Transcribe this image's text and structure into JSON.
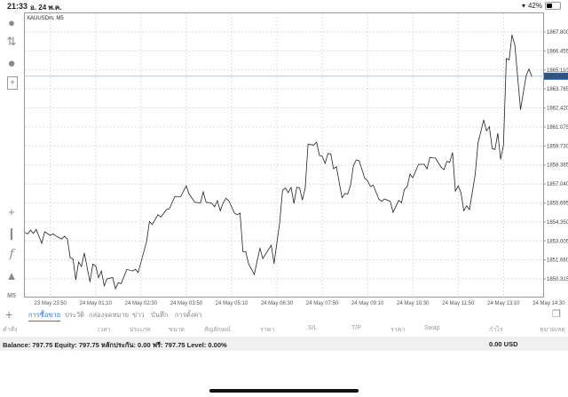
{
  "status_bar": {
    "time": "21:33",
    "date": "อ. 24 พ.ค.",
    "battery": "42%",
    "battery_level": 0.42,
    "wifi_icon": "wifi-icon"
  },
  "toolbar": {
    "icons": [
      "account-icon",
      "trade-arrows-icon",
      "chat-icon",
      "new-document-icon",
      "crosshair-icon",
      "candlestick-icon",
      "indicator-f-icon",
      "shapes-icon"
    ],
    "timeframe": "M5"
  },
  "chart": {
    "symbol_label": "XAUUSDm, M5",
    "current_price": "1864.668",
    "accent_color": "#2b5a94"
  },
  "chart_data": {
    "type": "line",
    "title": "XAUUSDm, M5",
    "xlim": [
      "23 May 23:05",
      "24 May 14:20"
    ],
    "ylim": [
      1849.06,
      1869.12
    ],
    "grid": true,
    "y_ticks": [
      "1867.800",
      "1866.455",
      "1865.110",
      "1863.765",
      "1862.420",
      "1861.075",
      "1859.730",
      "1858.385",
      "1857.040",
      "1855.695",
      "1854.350",
      "1853.005",
      "1851.660",
      "1850.315"
    ],
    "x_ticks": [
      "23 May 23:50",
      "24 May 01:10",
      "24 May 02:30",
      "24 May 03:50",
      "24 May 05:10",
      "24 May 06:30",
      "24 May 07:50",
      "24 May 09:10",
      "24 May 10:30",
      "24 May 11:50",
      "24 May 13:10",
      "24 May 14:30"
    ],
    "current_price": 1864.668,
    "points": [
      [
        "23 May 23:05",
        1853.6
      ],
      [
        "23 May 23:10",
        1853.5
      ],
      [
        "23 May 23:15",
        1853.77
      ],
      [
        "23 May 23:20",
        1853.54
      ],
      [
        "23 May 23:25",
        1853.82
      ],
      [
        "23 May 23:35",
        1852.83
      ],
      [
        "23 May 23:40",
        1853.65
      ],
      [
        "23 May 23:50",
        1853.4
      ],
      [
        "23 May 23:55",
        1853.5
      ],
      [
        "24 May 00:00",
        1853.35
      ],
      [
        "24 May 00:10",
        1853.14
      ],
      [
        "24 May 00:15",
        1853.33
      ],
      [
        "24 May 00:20",
        1853.14
      ],
      [
        "24 May 00:25",
        1851.82
      ],
      [
        "24 May 00:30",
        1851.72
      ],
      [
        "24 May 00:35",
        1850.25
      ],
      [
        "24 May 00:40",
        1851.51
      ],
      [
        "24 May 00:45",
        1851.19
      ],
      [
        "24 May 00:50",
        1852.14
      ],
      [
        "24 May 01:00",
        1850.11
      ],
      [
        "24 May 01:05",
        1851.36
      ],
      [
        "24 May 01:10",
        1851.24
      ],
      [
        "24 May 01:15",
        1850.4
      ],
      [
        "24 May 01:20",
        1850.88
      ],
      [
        "24 May 01:25",
        1849.83
      ],
      [
        "24 May 01:30",
        1850.31
      ],
      [
        "24 May 01:40",
        1850.42
      ],
      [
        "24 May 01:45",
        1849.62
      ],
      [
        "24 May 01:50",
        1850.04
      ],
      [
        "24 May 01:55",
        1849.98
      ],
      [
        "24 May 02:05",
        1850.99
      ],
      [
        "24 May 02:15",
        1850.88
      ],
      [
        "24 May 02:20",
        1850.99
      ],
      [
        "24 May 02:25",
        1850.77
      ],
      [
        "24 May 02:40",
        1852.97
      ],
      [
        "24 May 02:45",
        1854.38
      ],
      [
        "24 May 02:50",
        1854.17
      ],
      [
        "24 May 03:00",
        1854.86
      ],
      [
        "24 May 03:05",
        1854.7
      ],
      [
        "24 May 03:15",
        1855.22
      ],
      [
        "24 May 03:20",
        1855.28
      ],
      [
        "24 May 03:30",
        1856.16
      ],
      [
        "24 May 03:40",
        1856.14
      ],
      [
        "24 May 03:50",
        1856.9
      ],
      [
        "24 May 03:55",
        1856.33
      ],
      [
        "24 May 04:05",
        1855.74
      ],
      [
        "24 May 04:15",
        1855.7
      ],
      [
        "24 May 04:20",
        1856.48
      ],
      [
        "24 May 04:25",
        1855.74
      ],
      [
        "24 May 04:35",
        1855.68
      ],
      [
        "24 May 04:40",
        1855.43
      ],
      [
        "24 May 04:45",
        1855.85
      ],
      [
        "24 May 04:50",
        1855.14
      ],
      [
        "24 May 04:55",
        1855.7
      ],
      [
        "24 May 05:00",
        1856.02
      ],
      [
        "24 May 05:05",
        1855.85
      ],
      [
        "24 May 05:15",
        1854.97
      ],
      [
        "24 May 05:20",
        1854.86
      ],
      [
        "24 May 05:25",
        1854.97
      ],
      [
        "24 May 05:30",
        1852.24
      ],
      [
        "24 May 05:35",
        1852.24
      ],
      [
        "24 May 05:40",
        1851.4
      ],
      [
        "24 May 05:50",
        1850.63
      ],
      [
        "24 May 06:00",
        1852.5
      ],
      [
        "24 May 06:05",
        1851.76
      ],
      [
        "24 May 06:20",
        1852.7
      ],
      [
        "24 May 06:25",
        1851.4
      ],
      [
        "24 May 06:35",
        1854.34
      ],
      [
        "24 May 06:40",
        1856.6
      ],
      [
        "24 May 06:45",
        1856.75
      ],
      [
        "24 May 06:50",
        1856.43
      ],
      [
        "24 May 06:55",
        1856.79
      ],
      [
        "24 May 07:00",
        1855.66
      ],
      [
        "24 May 07:05",
        1856.81
      ],
      [
        "24 May 07:10",
        1856.75
      ],
      [
        "24 May 07:15",
        1855.91
      ],
      [
        "24 May 07:20",
        1856.75
      ],
      [
        "24 May 07:25",
        1859.86
      ],
      [
        "24 May 07:35",
        1859.79
      ],
      [
        "24 May 07:40",
        1860.0
      ],
      [
        "24 May 07:45",
        1859.06
      ],
      [
        "24 May 07:50",
        1858.99
      ],
      [
        "24 May 07:55",
        1858.49
      ],
      [
        "24 May 08:00",
        1859.2
      ],
      [
        "24 May 08:05",
        1859.16
      ],
      [
        "24 May 08:10",
        1858.11
      ],
      [
        "24 May 08:15",
        1858.26
      ],
      [
        "24 May 08:25",
        1856.06
      ],
      [
        "24 May 08:30",
        1856.37
      ],
      [
        "24 May 08:35",
        1856.33
      ],
      [
        "24 May 08:40",
        1856.96
      ],
      [
        "24 May 08:45",
        1858.32
      ],
      [
        "24 May 08:50",
        1858.74
      ],
      [
        "24 May 08:55",
        1858.68
      ],
      [
        "24 May 09:05",
        1857.44
      ],
      [
        "24 May 09:10",
        1857.28
      ],
      [
        "24 May 09:15",
        1856.86
      ],
      [
        "24 May 09:20",
        1856.96
      ],
      [
        "24 May 09:30",
        1855.96
      ],
      [
        "24 May 09:35",
        1855.81
      ],
      [
        "24 May 09:40",
        1855.98
      ],
      [
        "24 May 09:50",
        1855.81
      ],
      [
        "24 May 09:55",
        1855.03
      ],
      [
        "24 May 10:05",
        1855.87
      ],
      [
        "24 May 10:10",
        1855.7
      ],
      [
        "24 May 10:15",
        1856.65
      ],
      [
        "24 May 10:20",
        1856.86
      ],
      [
        "24 May 10:25",
        1857.74
      ],
      [
        "24 May 10:30",
        1857.48
      ],
      [
        "24 May 10:40",
        1858.43
      ],
      [
        "24 May 10:50",
        1858.43
      ],
      [
        "24 May 10:55",
        1858.11
      ],
      [
        "24 May 11:00",
        1858.91
      ],
      [
        "24 May 11:10",
        1858.87
      ],
      [
        "24 May 11:20",
        1858.22
      ],
      [
        "24 May 11:25",
        1858.05
      ],
      [
        "24 May 11:30",
        1858.64
      ],
      [
        "24 May 11:35",
        1858.57
      ],
      [
        "24 May 11:40",
        1859.26
      ],
      [
        "24 May 11:45",
        1856.54
      ],
      [
        "24 May 11:50",
        1856.9
      ],
      [
        "24 May 11:55",
        1856.4
      ],
      [
        "24 May 12:00",
        1855.14
      ],
      [
        "24 May 12:05",
        1855.49
      ],
      [
        "24 May 12:10",
        1855.22
      ],
      [
        "24 May 12:20",
        1857.69
      ],
      [
        "24 May 12:25",
        1859.94
      ],
      [
        "24 May 12:35",
        1861.57
      ],
      [
        "24 May 12:40",
        1860.8
      ],
      [
        "24 May 12:45",
        1861.09
      ],
      [
        "24 May 12:50",
        1859.54
      ],
      [
        "24 May 12:55",
        1859.48
      ],
      [
        "24 May 13:00",
        1860.63
      ],
      [
        "24 May 13:05",
        1858.79
      ],
      [
        "24 May 13:10",
        1859.79
      ],
      [
        "24 May 13:15",
        1865.91
      ],
      [
        "24 May 13:20",
        1865.83
      ],
      [
        "24 May 13:25",
        1867.59
      ],
      [
        "24 May 13:30",
        1866.88
      ],
      [
        "24 May 13:40",
        1862.31
      ],
      [
        "24 May 13:50",
        1864.72
      ],
      [
        "24 May 13:55",
        1865.18
      ],
      [
        "24 May 14:00",
        1864.66
      ]
    ]
  },
  "bottom_tabs": {
    "add_icon": "plus-icon",
    "items": [
      {
        "label": "การซื้อขาย",
        "active": true
      },
      {
        "label": "ประวัติ",
        "active": false
      },
      {
        "label": "กล่องจดหมาย",
        "active": false
      },
      {
        "label": "ข่าว",
        "active": false
      },
      {
        "label": "บันทึก",
        "active": false
      },
      {
        "label": "การตั้งค่า",
        "active": false
      }
    ],
    "layout_icon": "window-layout-icon"
  },
  "columns": [
    "คำสั่ง",
    "เวลา",
    "ประเภท",
    "ขนาด",
    "สัญลักษณ์",
    "ราคา",
    "S/L",
    "T/P",
    "ราคา",
    "Swap",
    "กำไร",
    "หมายเหตุ"
  ],
  "balance": {
    "summary": "Balance: 797.75 Equity: 797.75 หลักประกัน: 0.00 ฟรี: 797.75 Level: 0.00%",
    "profit": "0.00  USD"
  }
}
